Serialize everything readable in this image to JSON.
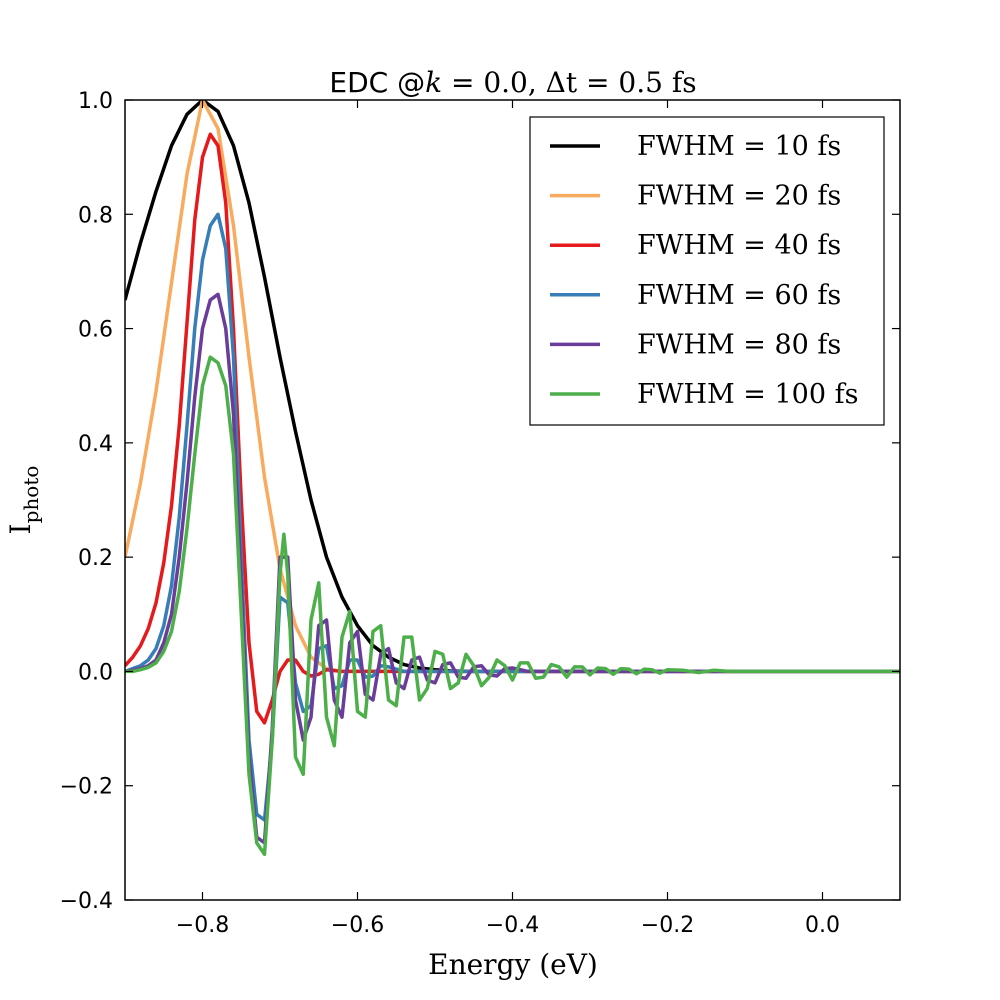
{
  "chart_data": {
    "type": "line",
    "title": {
      "prefix": "EDC @",
      "k_symbol": "k",
      "k_part": " = 0.0, ",
      "delta_symbol": "Δt",
      "dt_part": " = 0.5 fs"
    },
    "xlabel": "Energy (eV)",
    "ylabel": {
      "main": "I",
      "sub": "photo"
    },
    "xlim": [
      -0.9,
      0.1
    ],
    "ylim": [
      -0.4,
      1.0
    ],
    "xticks": [
      -0.8,
      -0.6,
      -0.4,
      -0.2,
      0.0
    ],
    "xtick_labels": [
      "−0.8",
      "−0.6",
      "−0.4",
      "−0.2",
      "0.0"
    ],
    "yticks": [
      -0.4,
      -0.2,
      0.0,
      0.2,
      0.4,
      0.6,
      0.8,
      1.0
    ],
    "ytick_labels": [
      "−0.4",
      "−0.2",
      "0.0",
      "0.2",
      "0.4",
      "0.6",
      "0.8",
      "1.0"
    ],
    "grid": false,
    "legend_position": "top-right",
    "series": [
      {
        "name": "FWHM = 10 fs",
        "color": "#000000",
        "points": [
          [
            -0.9,
            0.65
          ],
          [
            -0.88,
            0.75
          ],
          [
            -0.86,
            0.84
          ],
          [
            -0.84,
            0.92
          ],
          [
            -0.82,
            0.975
          ],
          [
            -0.8,
            1.0
          ],
          [
            -0.78,
            0.98
          ],
          [
            -0.76,
            0.92
          ],
          [
            -0.74,
            0.82
          ],
          [
            -0.72,
            0.69
          ],
          [
            -0.7,
            0.55
          ],
          [
            -0.68,
            0.42
          ],
          [
            -0.66,
            0.3
          ],
          [
            -0.64,
            0.2
          ],
          [
            -0.62,
            0.13
          ],
          [
            -0.6,
            0.08
          ],
          [
            -0.58,
            0.045
          ],
          [
            -0.56,
            0.025
          ],
          [
            -0.54,
            0.012
          ],
          [
            -0.52,
            0.006
          ],
          [
            -0.5,
            0.003
          ],
          [
            -0.48,
            0.001
          ],
          [
            -0.45,
            0.0
          ],
          [
            0.1,
            0.0
          ]
        ]
      },
      {
        "name": "FWHM = 20 fs",
        "color": "#f8ab5e",
        "points": [
          [
            -0.9,
            0.2
          ],
          [
            -0.88,
            0.33
          ],
          [
            -0.86,
            0.49
          ],
          [
            -0.84,
            0.68
          ],
          [
            -0.82,
            0.87
          ],
          [
            -0.8,
            1.0
          ],
          [
            -0.78,
            0.95
          ],
          [
            -0.76,
            0.78
          ],
          [
            -0.74,
            0.55
          ],
          [
            -0.72,
            0.34
          ],
          [
            -0.7,
            0.18
          ],
          [
            -0.68,
            0.08
          ],
          [
            -0.66,
            0.025
          ],
          [
            -0.64,
            0.005
          ],
          [
            -0.62,
            0.0
          ],
          [
            0.1,
            0.0
          ]
        ]
      },
      {
        "name": "FWHM = 40 fs",
        "color": "#e41a1c",
        "points": [
          [
            -0.9,
            0.01
          ],
          [
            -0.89,
            0.025
          ],
          [
            -0.88,
            0.045
          ],
          [
            -0.87,
            0.075
          ],
          [
            -0.86,
            0.12
          ],
          [
            -0.85,
            0.19
          ],
          [
            -0.84,
            0.29
          ],
          [
            -0.83,
            0.43
          ],
          [
            -0.82,
            0.61
          ],
          [
            -0.81,
            0.79
          ],
          [
            -0.8,
            0.9
          ],
          [
            -0.79,
            0.94
          ],
          [
            -0.78,
            0.92
          ],
          [
            -0.77,
            0.82
          ],
          [
            -0.76,
            0.6
          ],
          [
            -0.75,
            0.3
          ],
          [
            -0.74,
            0.05
          ],
          [
            -0.73,
            -0.07
          ],
          [
            -0.72,
            -0.09
          ],
          [
            -0.71,
            -0.05
          ],
          [
            -0.7,
            0.0
          ],
          [
            -0.69,
            0.02
          ],
          [
            -0.68,
            0.02
          ],
          [
            -0.67,
            0.0
          ],
          [
            -0.66,
            -0.008
          ],
          [
            -0.65,
            -0.005
          ],
          [
            -0.64,
            0.003
          ],
          [
            -0.62,
            0.0
          ],
          [
            0.1,
            0.0
          ]
        ]
      },
      {
        "name": "FWHM = 60 fs",
        "color": "#377eb8",
        "points": [
          [
            -0.9,
            0.0
          ],
          [
            -0.89,
            0.005
          ],
          [
            -0.88,
            0.01
          ],
          [
            -0.87,
            0.02
          ],
          [
            -0.86,
            0.04
          ],
          [
            -0.85,
            0.08
          ],
          [
            -0.84,
            0.15
          ],
          [
            -0.83,
            0.27
          ],
          [
            -0.82,
            0.43
          ],
          [
            -0.81,
            0.6
          ],
          [
            -0.8,
            0.72
          ],
          [
            -0.79,
            0.78
          ],
          [
            -0.78,
            0.8
          ],
          [
            -0.77,
            0.74
          ],
          [
            -0.76,
            0.55
          ],
          [
            -0.75,
            0.2
          ],
          [
            -0.74,
            -0.12
          ],
          [
            -0.73,
            -0.25
          ],
          [
            -0.72,
            -0.26
          ],
          [
            -0.71,
            -0.12
          ],
          [
            -0.7,
            0.13
          ],
          [
            -0.69,
            0.12
          ],
          [
            -0.68,
            -0.02
          ],
          [
            -0.67,
            -0.07
          ],
          [
            -0.66,
            -0.06
          ],
          [
            -0.65,
            0.04
          ],
          [
            -0.64,
            0.045
          ],
          [
            -0.63,
            -0.03
          ],
          [
            -0.62,
            -0.025
          ],
          [
            -0.61,
            0.02
          ],
          [
            -0.6,
            0.02
          ],
          [
            -0.59,
            -0.01
          ],
          [
            -0.58,
            -0.008
          ],
          [
            -0.57,
            0.01
          ],
          [
            -0.56,
            0.008
          ],
          [
            -0.54,
            0.0
          ],
          [
            0.1,
            0.0
          ]
        ]
      },
      {
        "name": "FWHM = 80 fs",
        "color": "#6a3d9a",
        "points": [
          [
            -0.9,
            0.0
          ],
          [
            -0.89,
            0.002
          ],
          [
            -0.88,
            0.005
          ],
          [
            -0.87,
            0.01
          ],
          [
            -0.86,
            0.02
          ],
          [
            -0.85,
            0.05
          ],
          [
            -0.84,
            0.1
          ],
          [
            -0.83,
            0.2
          ],
          [
            -0.82,
            0.33
          ],
          [
            -0.81,
            0.48
          ],
          [
            -0.8,
            0.6
          ],
          [
            -0.79,
            0.65
          ],
          [
            -0.78,
            0.66
          ],
          [
            -0.77,
            0.6
          ],
          [
            -0.76,
            0.45
          ],
          [
            -0.75,
            0.15
          ],
          [
            -0.74,
            -0.15
          ],
          [
            -0.73,
            -0.29
          ],
          [
            -0.72,
            -0.3
          ],
          [
            -0.71,
            -0.1
          ],
          [
            -0.7,
            0.2
          ],
          [
            -0.69,
            0.2
          ],
          [
            -0.68,
            -0.05
          ],
          [
            -0.67,
            -0.12
          ],
          [
            -0.66,
            -0.08
          ],
          [
            -0.65,
            0.08
          ],
          [
            -0.64,
            0.09
          ],
          [
            -0.63,
            -0.05
          ],
          [
            -0.62,
            -0.08
          ],
          [
            -0.61,
            0.05
          ],
          [
            -0.6,
            0.07
          ],
          [
            -0.59,
            -0.04
          ],
          [
            -0.58,
            -0.05
          ],
          [
            -0.57,
            0.03
          ],
          [
            -0.56,
            0.04
          ],
          [
            -0.55,
            -0.02
          ],
          [
            -0.54,
            -0.03
          ],
          [
            -0.53,
            0.02
          ],
          [
            -0.52,
            0.025
          ],
          [
            -0.51,
            -0.015
          ],
          [
            -0.5,
            -0.02
          ],
          [
            -0.49,
            0.012
          ],
          [
            -0.48,
            0.015
          ],
          [
            -0.47,
            -0.01
          ],
          [
            -0.46,
            -0.012
          ],
          [
            -0.45,
            0.008
          ],
          [
            -0.44,
            0.01
          ],
          [
            -0.43,
            -0.006
          ],
          [
            -0.42,
            -0.008
          ],
          [
            -0.41,
            0.005
          ],
          [
            -0.4,
            0.006
          ],
          [
            -0.38,
            0.0
          ],
          [
            0.1,
            0.0
          ]
        ]
      },
      {
        "name": "FWHM = 100 fs",
        "color": "#4daf4a",
        "points": [
          [
            -0.9,
            0.0
          ],
          [
            -0.89,
            0.0
          ],
          [
            -0.88,
            0.003
          ],
          [
            -0.87,
            0.007
          ],
          [
            -0.86,
            0.015
          ],
          [
            -0.85,
            0.035
          ],
          [
            -0.84,
            0.07
          ],
          [
            -0.83,
            0.14
          ],
          [
            -0.82,
            0.25
          ],
          [
            -0.81,
            0.38
          ],
          [
            -0.8,
            0.5
          ],
          [
            -0.79,
            0.55
          ],
          [
            -0.78,
            0.54
          ],
          [
            -0.77,
            0.5
          ],
          [
            -0.76,
            0.38
          ],
          [
            -0.75,
            0.1
          ],
          [
            -0.74,
            -0.18
          ],
          [
            -0.73,
            -0.3
          ],
          [
            -0.72,
            -0.32
          ],
          [
            -0.71,
            -0.12
          ],
          [
            -0.7,
            0.17
          ],
          [
            -0.695,
            0.24
          ],
          [
            -0.69,
            0.17
          ],
          [
            -0.68,
            -0.15
          ],
          [
            -0.67,
            -0.18
          ],
          [
            -0.66,
            0.09
          ],
          [
            -0.65,
            0.155
          ],
          [
            -0.64,
            -0.08
          ],
          [
            -0.63,
            -0.13
          ],
          [
            -0.62,
            0.06
          ],
          [
            -0.61,
            0.105
          ],
          [
            -0.6,
            -0.07
          ],
          [
            -0.59,
            -0.08
          ],
          [
            -0.58,
            0.07
          ],
          [
            -0.57,
            0.08
          ],
          [
            -0.56,
            -0.05
          ],
          [
            -0.55,
            -0.06
          ],
          [
            -0.54,
            0.06
          ],
          [
            -0.53,
            0.06
          ],
          [
            -0.52,
            -0.05
          ],
          [
            -0.51,
            -0.03
          ],
          [
            -0.5,
            0.035
          ],
          [
            -0.49,
            0.03
          ],
          [
            -0.48,
            -0.03
          ],
          [
            -0.47,
            -0.02
          ],
          [
            -0.46,
            0.03
          ],
          [
            -0.45,
            0.01
          ],
          [
            -0.44,
            -0.025
          ],
          [
            -0.43,
            -0.01
          ],
          [
            -0.42,
            0.02
          ],
          [
            -0.41,
            0.01
          ],
          [
            -0.4,
            -0.015
          ],
          [
            -0.39,
            0.015
          ],
          [
            -0.38,
            0.015
          ],
          [
            -0.37,
            -0.012
          ],
          [
            -0.36,
            -0.01
          ],
          [
            -0.35,
            0.012
          ],
          [
            -0.34,
            0.008
          ],
          [
            -0.33,
            -0.01
          ],
          [
            -0.32,
            0.008
          ],
          [
            -0.31,
            0.008
          ],
          [
            -0.3,
            -0.006
          ],
          [
            -0.29,
            0.006
          ],
          [
            -0.28,
            0.005
          ],
          [
            -0.27,
            -0.005
          ],
          [
            -0.26,
            0.005
          ],
          [
            -0.25,
            0.004
          ],
          [
            -0.24,
            -0.004
          ],
          [
            -0.23,
            0.004
          ],
          [
            -0.22,
            0.003
          ],
          [
            -0.21,
            -0.003
          ],
          [
            -0.2,
            0.003
          ],
          [
            -0.18,
            0.002
          ],
          [
            -0.16,
            -0.002
          ],
          [
            -0.14,
            0.002
          ],
          [
            -0.12,
            0.0
          ],
          [
            0.1,
            0.0
          ]
        ]
      }
    ]
  }
}
